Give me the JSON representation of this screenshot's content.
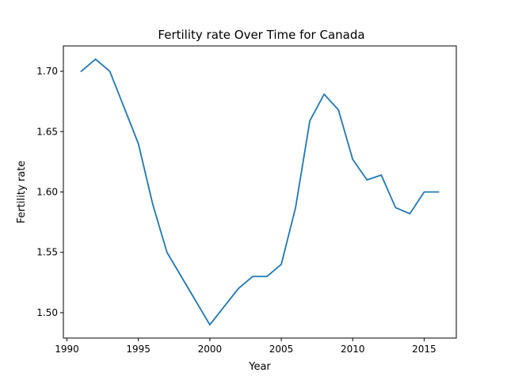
{
  "chart_data": {
    "type": "line",
    "title": "Fertility rate Over Time for Canada",
    "xlabel": "Year",
    "ylabel": "Fertility rate",
    "xlim": [
      1989.75,
      2017.25
    ],
    "ylim": [
      1.479,
      1.721
    ],
    "xticks": [
      1990,
      1995,
      2000,
      2005,
      2010,
      2015
    ],
    "yticks": [
      1.5,
      1.55,
      1.6,
      1.65,
      1.7
    ],
    "xtick_labels": [
      "1990",
      "1995",
      "2000",
      "2005",
      "2010",
      "2015"
    ],
    "ytick_labels": [
      "1.50",
      "1.55",
      "1.60",
      "1.65",
      "1.70"
    ],
    "grid": false,
    "series": [
      {
        "color": "#1f77b4",
        "x": [
          1991,
          1992,
          1993,
          1994,
          1995,
          1996,
          1997,
          1998,
          1999,
          2000,
          2001,
          2002,
          2003,
          2004,
          2005,
          2006,
          2007,
          2008,
          2009,
          2010,
          2011,
          2012,
          2013,
          2014,
          2015,
          2016
        ],
        "y": [
          1.7,
          1.71,
          1.7,
          1.67,
          1.64,
          1.59,
          1.55,
          1.53,
          1.51,
          1.49,
          1.505,
          1.52,
          1.53,
          1.53,
          1.54,
          1.587,
          1.659,
          1.681,
          1.668,
          1.627,
          1.61,
          1.614,
          1.587,
          1.582,
          1.6,
          1.6
        ]
      }
    ]
  }
}
